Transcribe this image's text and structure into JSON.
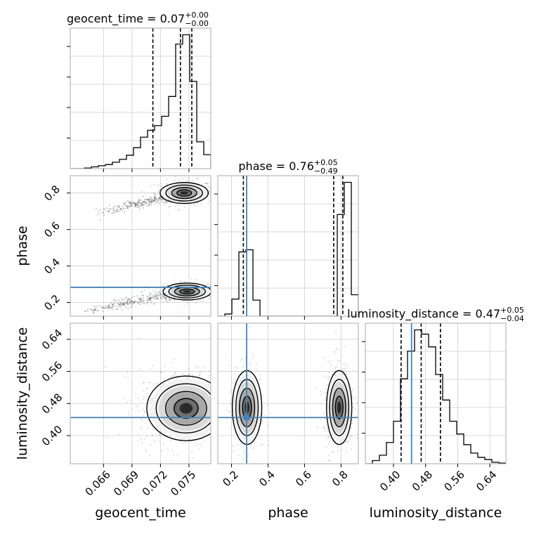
{
  "chart_data": {
    "type": "corner",
    "parameters": [
      {
        "name": "geocent_time",
        "axis_label": "geocent_time",
        "range": [
          0.0625,
          0.0773
        ],
        "ticks": [
          0.066,
          0.069,
          0.072,
          0.075
        ],
        "tick_labels": [
          "0.066",
          "0.069",
          "0.072",
          "0.075"
        ],
        "title_main": "geocent_time = 0.07",
        "title_plus": "+0.00",
        "title_minus": "−0.00",
        "quantiles": [
          0.0712,
          0.0741,
          0.0753
        ],
        "truth": null,
        "histogram": [
          0,
          0,
          0.5,
          1.5,
          2.5,
          3.5,
          5.5,
          8,
          11.5,
          18,
          27,
          33,
          37,
          45,
          62,
          107,
          115,
          75,
          23,
          12
        ]
      },
      {
        "name": "phase",
        "axis_label": "phase",
        "range": [
          0.125,
          0.895
        ],
        "ticks": [
          0.2,
          0.4,
          0.6,
          0.8
        ],
        "tick_labels": [
          "0.2",
          "0.4",
          "0.6",
          "0.8"
        ],
        "title_main": "phase = 0.76",
        "title_plus": "+0.05",
        "title_minus": "−0.49",
        "quantiles": [
          0.265,
          0.76,
          0.81
        ],
        "truth": 0.283,
        "histogram": [
          0,
          2,
          16,
          60,
          62,
          15,
          0,
          0,
          0,
          0,
          0,
          0,
          0,
          0,
          0,
          0,
          0,
          95,
          125,
          20
        ]
      },
      {
        "name": "luminosity_distance",
        "axis_label": "luminosity_distance",
        "range": [
          0.33,
          0.68
        ],
        "ticks": [
          0.4,
          0.48,
          0.56,
          0.64
        ],
        "tick_labels": [
          "0.40",
          "0.48",
          "0.56",
          "0.64"
        ],
        "title_main": "luminosity_distance = 0.47",
        "title_plus": "+0.05",
        "title_minus": "−0.04",
        "quantiles": [
          0.419,
          0.469,
          0.517
        ],
        "truth": 0.445,
        "histogram": [
          0,
          1.5,
          4,
          10,
          20,
          40,
          53,
          63,
          61,
          55,
          42,
          30,
          20,
          14,
          9,
          5,
          3,
          2,
          0.7,
          0.3
        ]
      }
    ],
    "panels": [
      {
        "row": 1,
        "col": 0,
        "x": "geocent_time",
        "y": "phase",
        "modes": [
          {
            "cx": 0.0745,
            "cy": 0.8,
            "sx": 0.0011,
            "sy": 0.025,
            "weight": 0.55
          },
          {
            "cx": 0.0748,
            "cy": 0.26,
            "sx": 0.0011,
            "sy": 0.02,
            "weight": 0.45
          }
        ],
        "tails": [
          {
            "x0": 0.0655,
            "y0": 0.69,
            "x1": 0.0745,
            "y1": 0.8
          },
          {
            "x0": 0.064,
            "y0": 0.15,
            "x1": 0.0745,
            "y1": 0.26
          }
        ]
      },
      {
        "row": 2,
        "col": 0,
        "x": "geocent_time",
        "y": "luminosity_distance",
        "modes": [
          {
            "cx": 0.0747,
            "cy": 0.468,
            "sx": 0.0018,
            "sy": 0.035,
            "weight": 1
          }
        ]
      },
      {
        "row": 2,
        "col": 1,
        "x": "phase",
        "y": "luminosity_distance",
        "modes": [
          {
            "cx": 0.285,
            "cy": 0.47,
            "sx": 0.035,
            "sy": 0.04,
            "weight": 0.42
          },
          {
            "cx": 0.79,
            "cy": 0.47,
            "sx": 0.03,
            "sy": 0.04,
            "weight": 0.58
          }
        ]
      }
    ],
    "truth_color": "#4682b4",
    "hist_color": "#000000",
    "grid": true
  }
}
